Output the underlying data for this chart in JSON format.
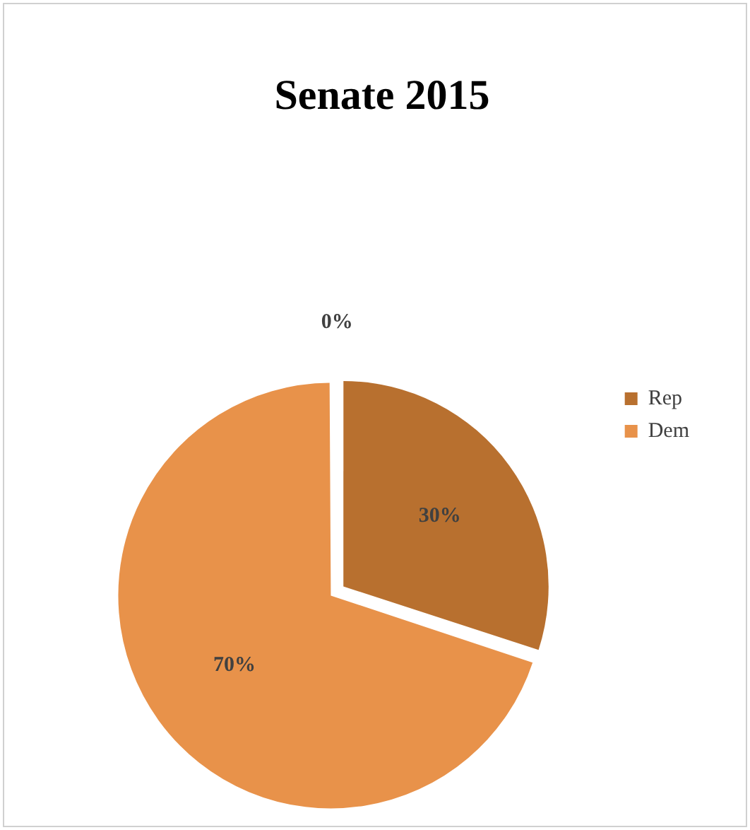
{
  "chart_data": {
    "type": "pie",
    "title": "Senate 2015",
    "categories": [
      "Rep",
      "Dem",
      null
    ],
    "values": [
      30,
      70,
      0
    ],
    "colors": [
      "#b8702f",
      "#e8924a",
      "#a5a5a5"
    ],
    "value_labels": [
      "30%",
      "70%",
      "0%"
    ],
    "legend": "right"
  }
}
